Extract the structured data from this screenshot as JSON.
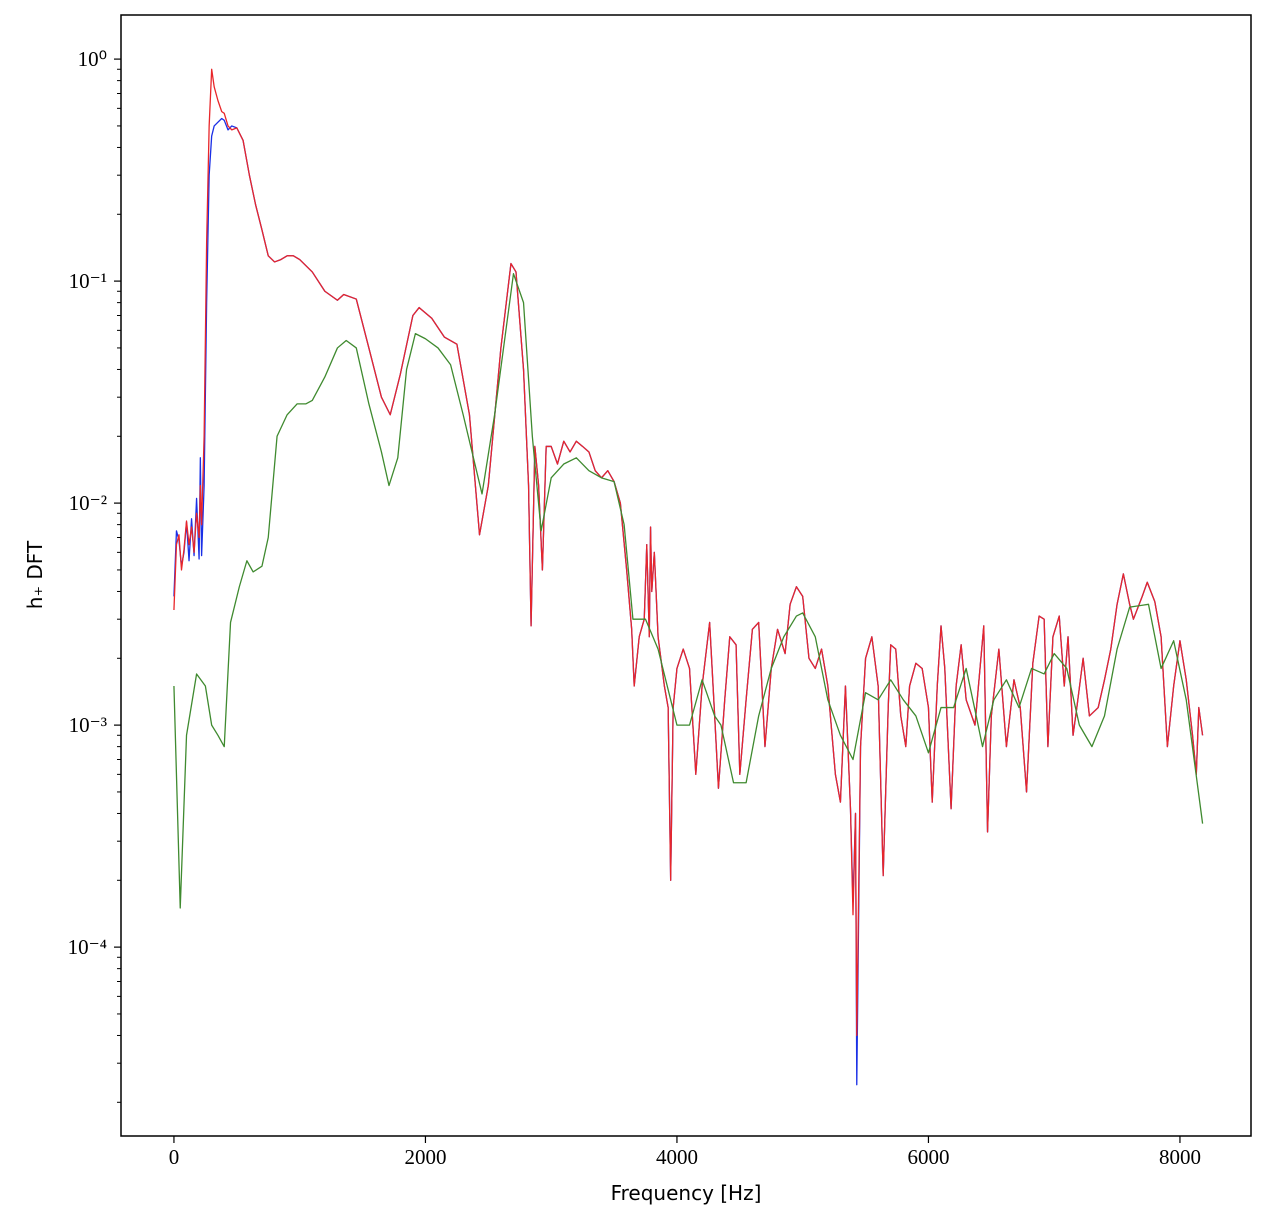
{
  "chart_data": {
    "type": "line",
    "xlabel": "Frequency [Hz]",
    "ylabel": "h₊ DFT",
    "yscale": "log",
    "xlim": [
      -421,
      8565
    ],
    "ylim": [
      1.41e-05,
      1.58
    ],
    "xticks": [
      0,
      2000,
      4000,
      6000,
      8000
    ],
    "yticks": [
      {
        "value": 1,
        "label": "10⁰"
      },
      {
        "value": 0.1,
        "label": "10⁻¹"
      },
      {
        "value": 0.01,
        "label": "10⁻²"
      },
      {
        "value": 0.001,
        "label": "10⁻³"
      },
      {
        "value": 0.0001,
        "label": "10⁻⁴"
      }
    ],
    "yminorticks": [
      2e-05,
      3e-05,
      4e-05,
      5e-05,
      6e-05,
      7e-05,
      8e-05,
      9e-05,
      0.0002,
      0.0003,
      0.0004,
      0.0005,
      0.0006,
      0.0007,
      0.0008,
      0.0009,
      0.002,
      0.003,
      0.004,
      0.005,
      0.006,
      0.007,
      0.008,
      0.009,
      0.02,
      0.03,
      0.04,
      0.05,
      0.06,
      0.07,
      0.08,
      0.09,
      0.2,
      0.3,
      0.4,
      0.5,
      0.6,
      0.7,
      0.8,
      0.9
    ],
    "x": [
      0,
      20,
      40,
      60,
      80,
      100,
      120,
      140,
      160,
      180,
      200,
      210,
      220,
      240,
      260,
      280,
      300,
      320,
      350,
      380,
      400,
      430,
      460,
      500,
      550,
      600,
      650,
      700,
      750,
      800,
      850,
      900,
      950,
      1000,
      1100,
      1200,
      1300,
      1350,
      1450,
      1550,
      1650,
      1720,
      1800,
      1900,
      1950,
      2050,
      2150,
      2250,
      2350,
      2430,
      2500,
      2600,
      2680,
      2720,
      2780,
      2820,
      2840,
      2870,
      2900,
      2930,
      2960,
      3000,
      3050,
      3100,
      3150,
      3200,
      3250,
      3300,
      3350,
      3400,
      3450,
      3500,
      3550,
      3600,
      3640,
      3660,
      3700,
      3740,
      3760,
      3780,
      3790,
      3800,
      3820,
      3850,
      3900,
      3930,
      3950,
      3970,
      4000,
      4050,
      4100,
      4150,
      4200,
      4260,
      4300,
      4330,
      4380,
      4420,
      4470,
      4500,
      4550,
      4600,
      4650,
      4700,
      4750,
      4800,
      4860,
      4900,
      4950,
      5000,
      5050,
      5100,
      5150,
      5200,
      5260,
      5300,
      5340,
      5380,
      5400,
      5420,
      5430,
      5460,
      5500,
      5550,
      5600,
      5640,
      5680,
      5700,
      5740,
      5780,
      5820,
      5850,
      5900,
      5950,
      6000,
      6030,
      6070,
      6100,
      6130,
      6180,
      6220,
      6260,
      6300,
      6370,
      6440,
      6470,
      6500,
      6560,
      6620,
      6680,
      6730,
      6780,
      6830,
      6880,
      6920,
      6950,
      6990,
      7040,
      7080,
      7110,
      7150,
      7180,
      7230,
      7280,
      7350,
      7400,
      7450,
      7500,
      7550,
      7600,
      7630,
      7700,
      7740,
      7800,
      7850,
      7900,
      7950,
      8000,
      8050,
      8100,
      8130,
      8150,
      8180
    ],
    "series": [
      {
        "color": "#1a2fe6",
        "values": [
          0.0038,
          0.0075,
          0.0068,
          0.0052,
          0.006,
          0.0082,
          0.0055,
          0.0085,
          0.0058,
          0.0105,
          0.0056,
          0.016,
          0.0058,
          0.012,
          0.08,
          0.3,
          0.45,
          0.5,
          0.52,
          0.54,
          0.53,
          0.48,
          0.5,
          0.49,
          0.43,
          0.3,
          0.22,
          0.17,
          0.13,
          0.122,
          0.125,
          0.13,
          0.13,
          0.125,
          0.11,
          0.09,
          0.082,
          0.087,
          0.083,
          0.05,
          0.03,
          0.025,
          0.038,
          0.07,
          0.076,
          0.068,
          0.056,
          0.052,
          0.025,
          0.0072,
          0.012,
          0.05,
          0.12,
          0.11,
          0.04,
          0.012,
          0.0028,
          0.018,
          0.012,
          0.005,
          0.018,
          0.018,
          0.015,
          0.019,
          0.017,
          0.019,
          0.018,
          0.017,
          0.014,
          0.013,
          0.014,
          0.0125,
          0.01,
          0.005,
          0.0027,
          0.0015,
          0.0025,
          0.003,
          0.0065,
          0.0025,
          0.0078,
          0.004,
          0.006,
          0.0025,
          0.0015,
          0.0012,
          0.0002,
          0.0012,
          0.0018,
          0.0022,
          0.0018,
          0.0006,
          0.0015,
          0.0029,
          0.0011,
          0.00052,
          0.0013,
          0.0025,
          0.0023,
          0.0006,
          0.0013,
          0.0027,
          0.0029,
          0.0008,
          0.0018,
          0.0027,
          0.0021,
          0.0035,
          0.0042,
          0.0038,
          0.002,
          0.0018,
          0.0022,
          0.0015,
          0.0006,
          0.00045,
          0.0015,
          0.00042,
          0.00016,
          0.0004,
          2.4e-05,
          0.0008,
          0.002,
          0.0025,
          0.0015,
          0.00021,
          0.0012,
          0.0023,
          0.0022,
          0.0011,
          0.0008,
          0.0015,
          0.0019,
          0.0018,
          0.0012,
          0.00045,
          0.0015,
          0.0028,
          0.0018,
          0.00042,
          0.0015,
          0.0023,
          0.0013,
          0.001,
          0.0028,
          0.00033,
          0.0011,
          0.0022,
          0.0008,
          0.0016,
          0.0012,
          0.0005,
          0.0019,
          0.0031,
          0.003,
          0.0008,
          0.0025,
          0.0031,
          0.0015,
          0.0025,
          0.0009,
          0.0012,
          0.002,
          0.0011,
          0.0012,
          0.0016,
          0.0022,
          0.0035,
          0.0048,
          0.0035,
          0.003,
          0.0038,
          0.0044,
          0.0036,
          0.0025,
          0.0008,
          0.0015,
          0.0024,
          0.0016,
          0.0009,
          0.0006,
          0.0012,
          0.0009
        ]
      },
      {
        "color": "#e8262a",
        "values": [
          0.0033,
          0.0065,
          0.0072,
          0.005,
          0.0062,
          0.0083,
          0.0065,
          0.0078,
          0.006,
          0.009,
          0.007,
          0.012,
          0.008,
          0.02,
          0.15,
          0.5,
          0.9,
          0.75,
          0.65,
          0.58,
          0.57,
          0.5,
          0.48,
          0.49,
          0.43,
          0.3,
          0.22,
          0.17,
          0.13,
          0.122,
          0.125,
          0.13,
          0.13,
          0.125,
          0.11,
          0.09,
          0.082,
          0.087,
          0.083,
          0.05,
          0.03,
          0.025,
          0.038,
          0.07,
          0.076,
          0.068,
          0.056,
          0.052,
          0.025,
          0.0072,
          0.012,
          0.05,
          0.12,
          0.11,
          0.04,
          0.012,
          0.0028,
          0.018,
          0.012,
          0.005,
          0.018,
          0.018,
          0.015,
          0.019,
          0.017,
          0.019,
          0.018,
          0.017,
          0.014,
          0.013,
          0.014,
          0.0125,
          0.01,
          0.005,
          0.0027,
          0.0015,
          0.0025,
          0.003,
          0.0065,
          0.0025,
          0.0078,
          0.004,
          0.006,
          0.0025,
          0.0015,
          0.0012,
          0.0002,
          0.0012,
          0.0018,
          0.0022,
          0.0018,
          0.0006,
          0.0015,
          0.0029,
          0.0011,
          0.00052,
          0.0013,
          0.0025,
          0.0023,
          0.0006,
          0.0013,
          0.0027,
          0.0029,
          0.0008,
          0.0018,
          0.0027,
          0.0021,
          0.0035,
          0.0042,
          0.0038,
          0.002,
          0.0018,
          0.0022,
          0.0015,
          0.0006,
          0.00045,
          0.0015,
          0.00042,
          0.00014,
          0.0004,
          4e-05,
          0.0008,
          0.002,
          0.0025,
          0.0015,
          0.00021,
          0.0012,
          0.0023,
          0.0022,
          0.0011,
          0.0008,
          0.0015,
          0.0019,
          0.0018,
          0.0012,
          0.00045,
          0.0015,
          0.0028,
          0.0018,
          0.00042,
          0.0015,
          0.0023,
          0.0013,
          0.001,
          0.0028,
          0.00033,
          0.0011,
          0.0022,
          0.0008,
          0.0016,
          0.0012,
          0.0005,
          0.0019,
          0.0031,
          0.003,
          0.0008,
          0.0025,
          0.0031,
          0.0015,
          0.0025,
          0.0009,
          0.0012,
          0.002,
          0.0011,
          0.0012,
          0.0016,
          0.0022,
          0.0035,
          0.0048,
          0.0035,
          0.003,
          0.0038,
          0.0044,
          0.0036,
          0.0025,
          0.0008,
          0.0015,
          0.0024,
          0.0016,
          0.0009,
          0.0006,
          0.0012,
          0.0009
        ]
      },
      {
        "color": "#3f8a2f",
        "x": [
          0,
          50,
          100,
          180,
          250,
          300,
          350,
          400,
          450,
          520,
          580,
          630,
          700,
          750,
          820,
          900,
          980,
          1050,
          1100,
          1200,
          1300,
          1370,
          1450,
          1550,
          1650,
          1710,
          1780,
          1850,
          1920,
          2000,
          2100,
          2200,
          2300,
          2450,
          2550,
          2700,
          2780,
          2850,
          2920,
          3000,
          3100,
          3200,
          3300,
          3400,
          3500,
          3580,
          3650,
          3750,
          3850,
          3950,
          4000,
          4100,
          4200,
          4300,
          4350,
          4450,
          4550,
          4650,
          4750,
          4850,
          4950,
          5000,
          5100,
          5200,
          5300,
          5400,
          5500,
          5600,
          5700,
          5800,
          5900,
          6000,
          6100,
          6200,
          6300,
          6380,
          6430,
          6520,
          6620,
          6720,
          6820,
          6920,
          7000,
          7100,
          7200,
          7300,
          7400,
          7500,
          7600,
          7750,
          7850,
          7950,
          8050,
          8180
        ],
        "values": [
          0.0015,
          0.00015,
          0.0009,
          0.0017,
          0.0015,
          0.001,
          0.0009,
          0.0008,
          0.0029,
          0.0042,
          0.0055,
          0.0049,
          0.0052,
          0.007,
          0.02,
          0.025,
          0.028,
          0.028,
          0.029,
          0.037,
          0.05,
          0.054,
          0.05,
          0.028,
          0.017,
          0.012,
          0.016,
          0.04,
          0.058,
          0.055,
          0.05,
          0.042,
          0.025,
          0.011,
          0.025,
          0.108,
          0.08,
          0.02,
          0.0075,
          0.013,
          0.015,
          0.016,
          0.014,
          0.013,
          0.0125,
          0.008,
          0.003,
          0.003,
          0.0022,
          0.0013,
          0.001,
          0.001,
          0.0016,
          0.0011,
          0.001,
          0.00055,
          0.00055,
          0.0011,
          0.0018,
          0.0025,
          0.0031,
          0.0032,
          0.0025,
          0.0013,
          0.0009,
          0.0007,
          0.0014,
          0.0013,
          0.0016,
          0.0013,
          0.0011,
          0.00075,
          0.0012,
          0.0012,
          0.0018,
          0.0011,
          0.0008,
          0.0013,
          0.0016,
          0.0012,
          0.0018,
          0.0017,
          0.0021,
          0.0018,
          0.001,
          0.0008,
          0.0011,
          0.0022,
          0.0034,
          0.0035,
          0.0018,
          0.0024,
          0.0013,
          0.00036
        ]
      }
    ]
  }
}
